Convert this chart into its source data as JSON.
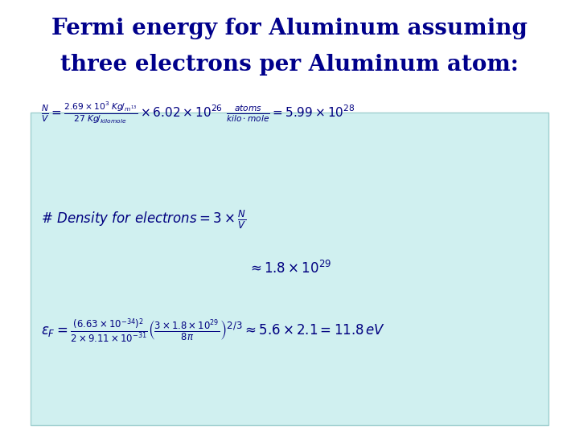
{
  "title_line1": "Fermi energy for Aluminum assuming",
  "title_line2": "three electrons per Aluminum atom:",
  "title_color": "#00008B",
  "bg_color": "#ffffff",
  "box_color": "#d0f0f0",
  "box_edge_color": "#a0d0d0",
  "eq1": "\\frac{N}{V} = \\frac{2.69\\times10^{3}\\,Kg\\big/_{m^{13}}}{27\\,Kg\\big/_{kilomole}}\\times 6.02\\times10^{26}\\,\\frac{atoms}{kilo\\cdot mole} = 5.99\\times10^{28}",
  "eq2": "\\#Density\\ for\\ electrons = 3\\times\\frac{N}{V}",
  "eq3": "\\approx 1.8\\times10^{29}",
  "eq4": "\\varepsilon_F = \\frac{\\left(6.63\\times10^{-34}\\right)^2}{2\\times9.11\\times10^{-31}}\\left(\\frac{3\\times1.8\\times10^{29}}{8\\pi}\\right)^{2/3} \\approx 5.6\\times2.1 = 11.8\\,eV"
}
